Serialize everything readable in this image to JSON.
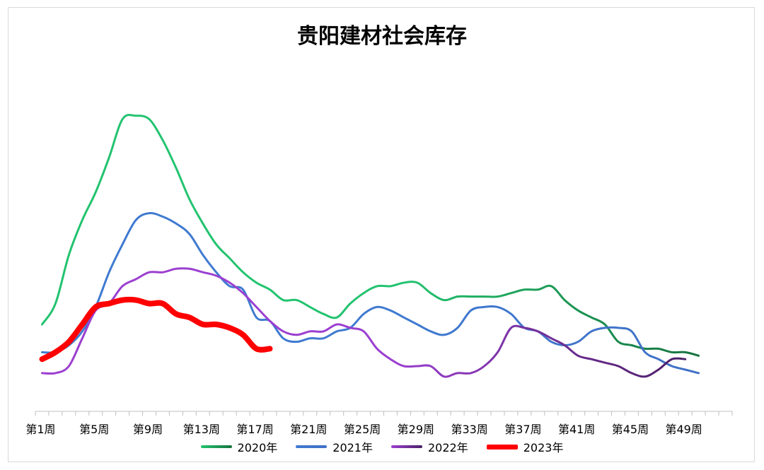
{
  "chart_data": {
    "type": "line",
    "title": "贵阳建材社会库存",
    "xlabel": "",
    "ylabel": "",
    "x_ticks": [
      "第1周",
      "第5周",
      "第9周",
      "第13周",
      "第17周",
      "第21周",
      "第25周",
      "第29周",
      "第33周",
      "第37周",
      "第41周",
      "第45周",
      "第49周"
    ],
    "ylim": [
      0,
      100
    ],
    "y_axis_visible": false,
    "grid": false,
    "legend_position": "bottom",
    "series": [
      {
        "name": "2020年",
        "color_start": "#22c36f",
        "color_end": "#17733f",
        "width": 3,
        "values": [
          25,
          31,
          45,
          55,
          63,
          73,
          84,
          85,
          84,
          78,
          70,
          61,
          54,
          48,
          44,
          40,
          37,
          35,
          32,
          32,
          30,
          28,
          27,
          31,
          34,
          36,
          36,
          37,
          37,
          34,
          32,
          33,
          33,
          33,
          33,
          34,
          35,
          35,
          36,
          32,
          29,
          27,
          25,
          20,
          19,
          18,
          18,
          17,
          17,
          16
        ]
      },
      {
        "name": "2021年",
        "color_start": "#3f7ad0",
        "color_end": "#3f70c6",
        "width": 3,
        "values": [
          17,
          17,
          19,
          23,
          30,
          40,
          48,
          55,
          57,
          56,
          54,
          51,
          45,
          40,
          36,
          35,
          27,
          26,
          21,
          20,
          21,
          21,
          23,
          24,
          28,
          30,
          29,
          27,
          25,
          23,
          22,
          24,
          29,
          30,
          30,
          28,
          24,
          23,
          20,
          19,
          20,
          23,
          24,
          24,
          23,
          17,
          15,
          13,
          12,
          11
        ]
      },
      {
        "name": "2022年",
        "color_start": "#9b3fd0",
        "color_end": "#4b1f66",
        "width": 3,
        "values": [
          11,
          11,
          13,
          21,
          29,
          31,
          36,
          38,
          40,
          40,
          41,
          41,
          40,
          39,
          37,
          34,
          30,
          26,
          23,
          22,
          23,
          23,
          25,
          24,
          23,
          18,
          15,
          13,
          13,
          13,
          10,
          11,
          11,
          13,
          17,
          24,
          24,
          23,
          21,
          19,
          16,
          15,
          14,
          13,
          11,
          10,
          12,
          15,
          15
        ]
      },
      {
        "name": "2023年",
        "color_start": "#ff0000",
        "color_end": "#ff0000",
        "width": 8,
        "values": [
          15,
          17,
          20,
          25,
          30,
          31,
          32,
          32,
          31,
          31,
          28,
          27,
          25,
          25,
          24,
          22,
          18,
          18
        ]
      }
    ]
  }
}
